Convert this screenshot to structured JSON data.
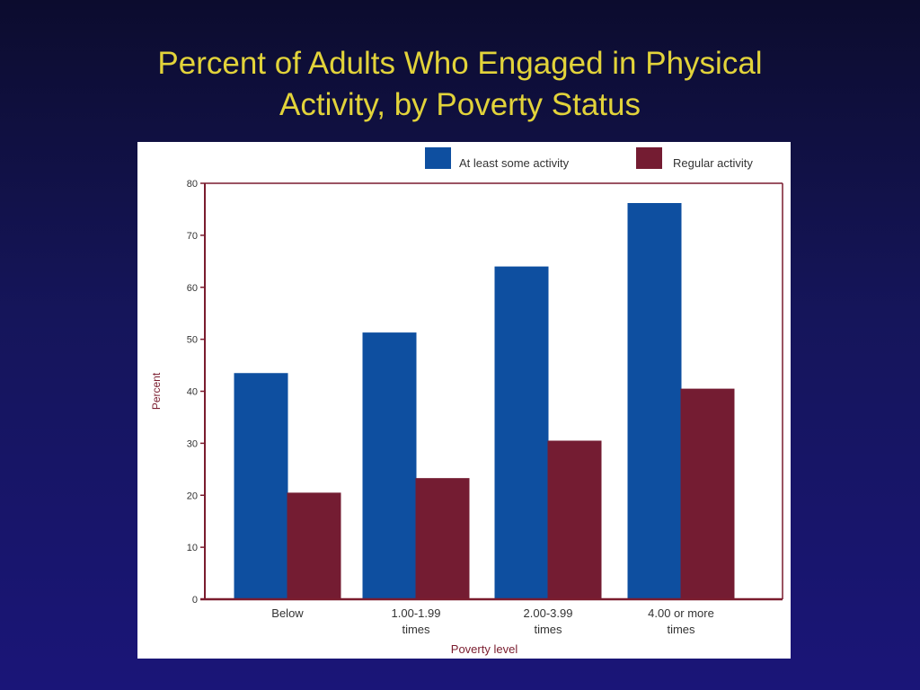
{
  "slide": {
    "title_line1": "Percent of Adults Who Engaged in Physical",
    "title_line2": "Activity, by Poverty Status"
  },
  "colors": {
    "title": "#e2d33a",
    "axis": "#7a1c2e",
    "series_1": "#0e4fa0",
    "series_2": "#741c32",
    "label_text": "#333333"
  },
  "chart_data": {
    "type": "bar",
    "title": "",
    "xlabel": "Poverty level",
    "ylabel": "Percent",
    "ylim": [
      0,
      80
    ],
    "yticks": [
      0,
      10,
      20,
      30,
      40,
      50,
      60,
      70,
      80
    ],
    "categories": [
      [
        "Below"
      ],
      [
        "1.00-1.99",
        "times"
      ],
      [
        "2.00-3.99",
        "times"
      ],
      [
        "4.00 or more",
        "times"
      ]
    ],
    "series": [
      {
        "name": "At least some activity",
        "values": [
          43.5,
          51.3,
          64,
          76.2
        ]
      },
      {
        "name": "Regular activity",
        "values": [
          20.5,
          23.3,
          30.5,
          40.5
        ]
      }
    ],
    "grid": false,
    "legend_position": "top-right"
  }
}
